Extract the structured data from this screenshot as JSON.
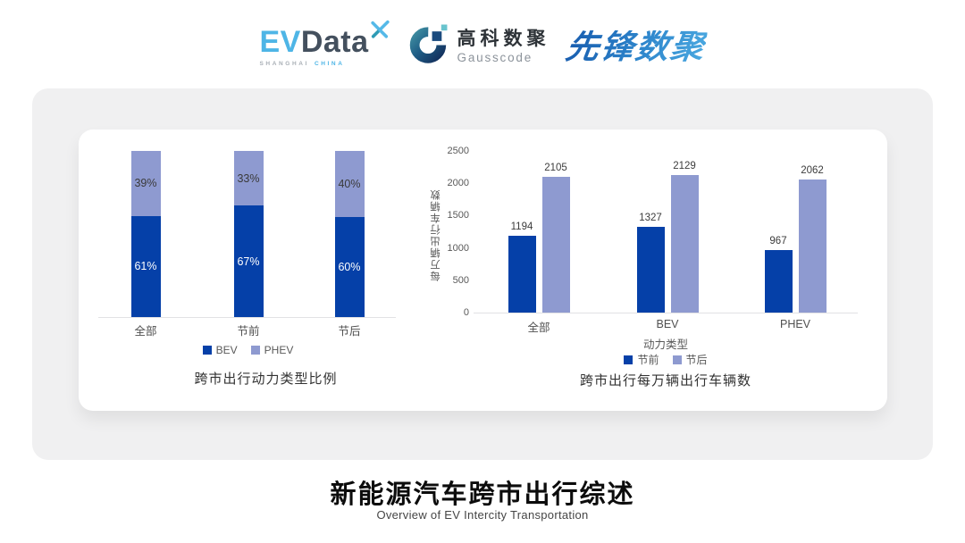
{
  "header": {
    "evdata_logo": {
      "ev": "EV",
      "data": "Data",
      "subtitle_left": "SHANGHAI",
      "subtitle_right": "CHINA"
    },
    "gausscode_logo": {
      "name_cn": "高科数聚",
      "name_en": "Gausscode"
    },
    "pioneer_logo": {
      "text": "先锋数聚"
    }
  },
  "chart_data": [
    {
      "type": "bar",
      "subtype": "stacked-percent",
      "title": "跨市出行动力类型比例",
      "categories": [
        "全部",
        "节前",
        "节后"
      ],
      "series": [
        {
          "name": "BEV",
          "values": [
            61,
            67,
            60
          ],
          "color": "#0540A8",
          "label_color": "#FFFFFF"
        },
        {
          "name": "PHEV",
          "values": [
            39,
            33,
            40
          ],
          "color": "#8E9AD0",
          "label_color": "#3A3A3A"
        }
      ],
      "value_suffix": "%",
      "ylim": [
        0,
        100
      ],
      "legend_position": "bottom",
      "grid": false
    },
    {
      "type": "bar",
      "subtype": "grouped",
      "title": "跨市出行每万辆出行车辆数",
      "categories": [
        "全部",
        "BEV",
        "PHEV"
      ],
      "xlabel": "动力类型",
      "ylabel": "每万辆出行车辆数",
      "yticks": [
        0,
        500,
        1000,
        1500,
        2000,
        2500
      ],
      "ylim": [
        0,
        2500
      ],
      "series": [
        {
          "name": "节前",
          "values": [
            1194,
            1327,
            967
          ],
          "color": "#0540A8"
        },
        {
          "name": "节后",
          "values": [
            2105,
            2129,
            2062
          ],
          "color": "#8E9AD0"
        }
      ],
      "legend_position": "bottom",
      "grid": false
    }
  ],
  "footer": {
    "title": "新能源汽车跨市出行综述",
    "subtitle": "Overview of EV Intercity Transportation"
  },
  "colors": {
    "accent_dark_blue": "#0540A8",
    "accent_light_blue": "#8E9AD0",
    "card_gray": "#F0F0F1",
    "evdata_blue": "#4EB5E6",
    "evdata_slate": "#44505E",
    "pioneer_blue": "#2B7EC6"
  }
}
